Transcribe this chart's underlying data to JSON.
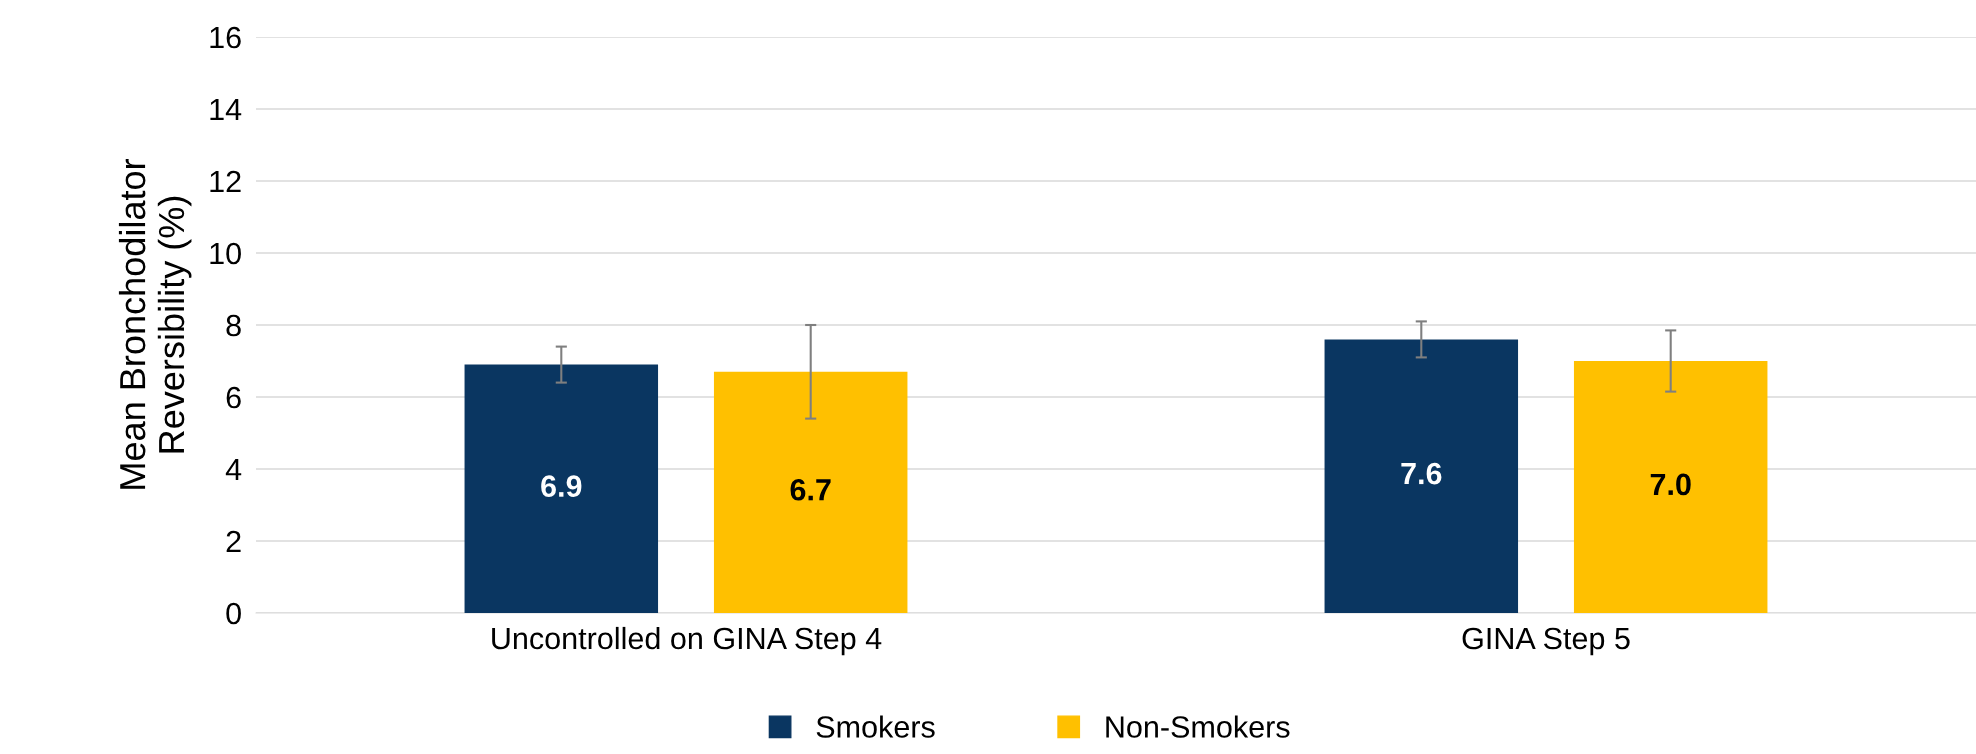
{
  "chart_data": {
    "type": "bar",
    "ylabel": "Mean Bronchodilator\nReversibility (%)",
    "categories": [
      "Uncontrolled on GINA Step 4",
      "GINA Step 5"
    ],
    "series": [
      {
        "name": "Smokers",
        "color": "#0a3661",
        "values": [
          6.9,
          7.6
        ],
        "errors": [
          0.5,
          0.5
        ],
        "value_labels": [
          "6.9",
          "7.6"
        ]
      },
      {
        "name": "Non-Smokers",
        "color": "#ffc000",
        "values": [
          6.7,
          7.0
        ],
        "errors": [
          1.3,
          0.85
        ],
        "value_labels": [
          "6.7",
          "7.0"
        ]
      }
    ],
    "ylim": [
      0,
      16
    ],
    "yticks": [
      0,
      2,
      4,
      6,
      8,
      10,
      12,
      14,
      16
    ],
    "grid": "y",
    "legend": "bottom"
  }
}
